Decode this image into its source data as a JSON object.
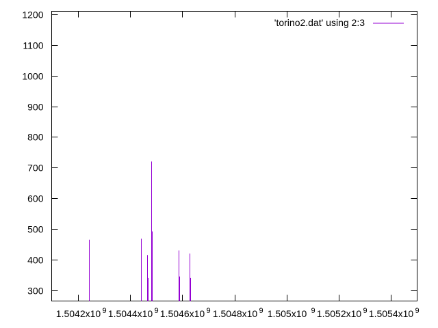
{
  "chart_data": {
    "type": "line",
    "title": "",
    "xlabel": "",
    "ylabel": "",
    "xlim": [
      1504100000,
      1505500000
    ],
    "ylim": [
      265,
      1210
    ],
    "yticks": [
      300,
      400,
      500,
      600,
      700,
      800,
      900,
      1000,
      1100,
      1200
    ],
    "xticks": [
      {
        "value": 1504200000,
        "mantissa": "1.5042x10",
        "exp": "9"
      },
      {
        "value": 1504400000,
        "mantissa": "1.5044x10",
        "exp": "9"
      },
      {
        "value": 1504600000,
        "mantissa": "1.5046x10",
        "exp": "9"
      },
      {
        "value": 1504800000,
        "mantissa": "1.5048x10",
        "exp": "9"
      },
      {
        "value": 1505000000,
        "mantissa": "1.505x10",
        "exp": "9"
      },
      {
        "value": 1505200000,
        "mantissa": "1.5052x10",
        "exp": "9"
      },
      {
        "value": 1505400000,
        "mantissa": "1.5054x10",
        "exp": "9"
      }
    ],
    "grid": false,
    "legend_position": "top-right",
    "series": [
      {
        "name": "'torino2.dat' using 2:3",
        "color": "#9400d3",
        "spikes": [
          {
            "x": 1504242000,
            "y": 465
          },
          {
            "x": 1504243500,
            "y": 365
          },
          {
            "x": 1504441000,
            "y": 468
          },
          {
            "x": 1504442000,
            "y": 365
          },
          {
            "x": 1504467000,
            "y": 415
          },
          {
            "x": 1504468000,
            "y": 340
          },
          {
            "x": 1504482000,
            "y": 720
          },
          {
            "x": 1504483500,
            "y": 492
          },
          {
            "x": 1504587000,
            "y": 430
          },
          {
            "x": 1504588000,
            "y": 345
          },
          {
            "x": 1504629000,
            "y": 420
          },
          {
            "x": 1504630000,
            "y": 340
          }
        ]
      }
    ]
  }
}
